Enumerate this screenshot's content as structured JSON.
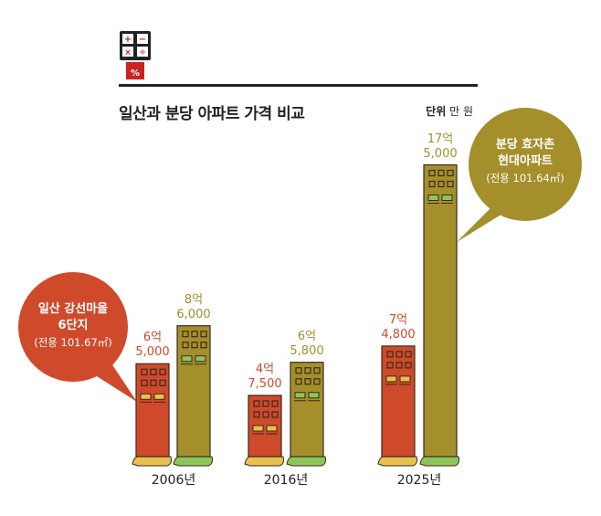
{
  "header": {
    "title": "일산과 분당 아파트 가격 비교",
    "unit_label": "단위",
    "unit_value": "만 원",
    "icon": "calculator-icon"
  },
  "colors": {
    "ilsan": "#cf4a2b",
    "bundang": "#a48f2b",
    "outline": "#3b2a1c",
    "ilsan_window": "#e9c14f",
    "bundang_window": "#8cc65a"
  },
  "callouts": [
    {
      "series": "ilsan",
      "line1": "일산 강선마을",
      "line2": "6단지",
      "line3": "(전용 101.67㎡)"
    },
    {
      "series": "bundang",
      "line1": "분당 효자촌",
      "line2": "현대아파트",
      "line3": "(전용 101.64㎡)"
    }
  ],
  "chart_data": {
    "type": "bar",
    "title": "일산과 분당 아파트 가격 비교",
    "ylabel": "단위 만 원",
    "categories": [
      "2006년",
      "2016년",
      "2025년"
    ],
    "series": [
      {
        "name": "일산 강선마을 6단지 (전용 101.67㎡)",
        "key": "ilsan",
        "values": [
          65000,
          47500,
          74800
        ],
        "labels": [
          [
            "6억",
            "5,000"
          ],
          [
            "4억",
            "7,500"
          ],
          [
            "7억",
            "4,800"
          ]
        ]
      },
      {
        "name": "분당 효자촌 현대아파트 (전용 101.64㎡)",
        "key": "bundang",
        "values": [
          86000,
          65800,
          175000
        ],
        "labels": [
          [
            "8억",
            "6,000"
          ],
          [
            "6억",
            "5,800"
          ],
          [
            "17억",
            "5,000"
          ]
        ]
      }
    ]
  }
}
